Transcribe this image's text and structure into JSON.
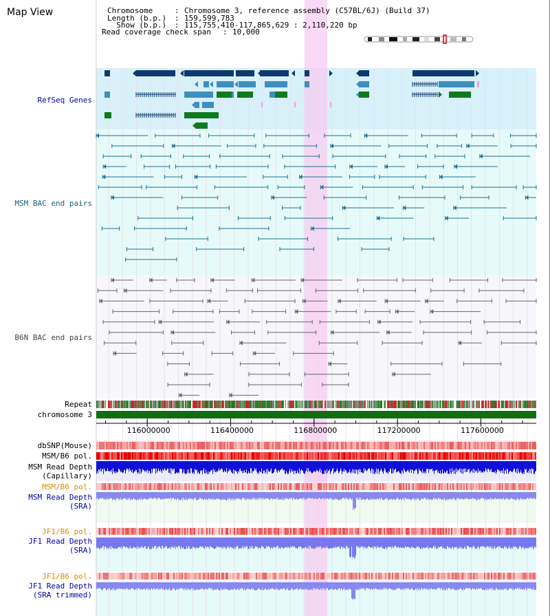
{
  "page": {
    "title": "Map View"
  },
  "header": {
    "chromosome_key": "Chromosome   ",
    "chromosome_val": "Chromosome 3, reference assembly (C57BL/6J) (Build 37)",
    "length_key": "Length (b.p.)",
    "length_val": "159,599,783",
    "show_key": "  Show (b.p.)",
    "show_val": "115,755,410-117,865,629 : 2,110,220 bp",
    "coverage_key": "Read coverage check span",
    "coverage_val": "10,000"
  },
  "view": {
    "start": 115755410,
    "end": 117865629
  },
  "ruler": {
    "ticks": [
      116000000,
      116400000,
      116800000,
      117200000,
      117600000
    ]
  },
  "tracks": {
    "refseq": "RefSeq Genes",
    "msm_bac": "MSM BAC end pairs",
    "b6n_bac": "B6N BAC end pairs",
    "repeat": "Repeat",
    "chromosome": "chromosome 3",
    "dbsnp": "dbSNP(Mouse)",
    "msm_b6_pol_1": "MSM/B6 pol.",
    "msm_depth_cap": "MSM Read Depth\n(Capillary)",
    "msm_b6_pol_2": "MSM/B6 pol.",
    "msm_depth_sra": "MSM Read Depth\n(SRA)",
    "jf1_b6_pol_1": "JF1/B6 pol.",
    "jf1_depth_sra": "JF1 Read Depth\n(SRA)",
    "jf1_b6_pol_2": "JF1/B6 pol.",
    "jf1_depth_trim": "JF1 Read Depth\n(SRA trimmed)"
  },
  "colors": {
    "refseq_bg": "#d8f0fa",
    "msm_bg": "#e6fafa",
    "b6n_bg": "#f6f6fb",
    "highlight": "#f7ccf2",
    "gene_dark": "#0c3a6e",
    "gene_mid": "#3d8fbf",
    "gene_green": "#0e7a1c",
    "msm_line": "#1f6f90",
    "b6n_line": "#666666",
    "label_blue": "#0000aa",
    "label_orange": "#e08a00",
    "chrom_green": "#0f6e0f"
  }
}
